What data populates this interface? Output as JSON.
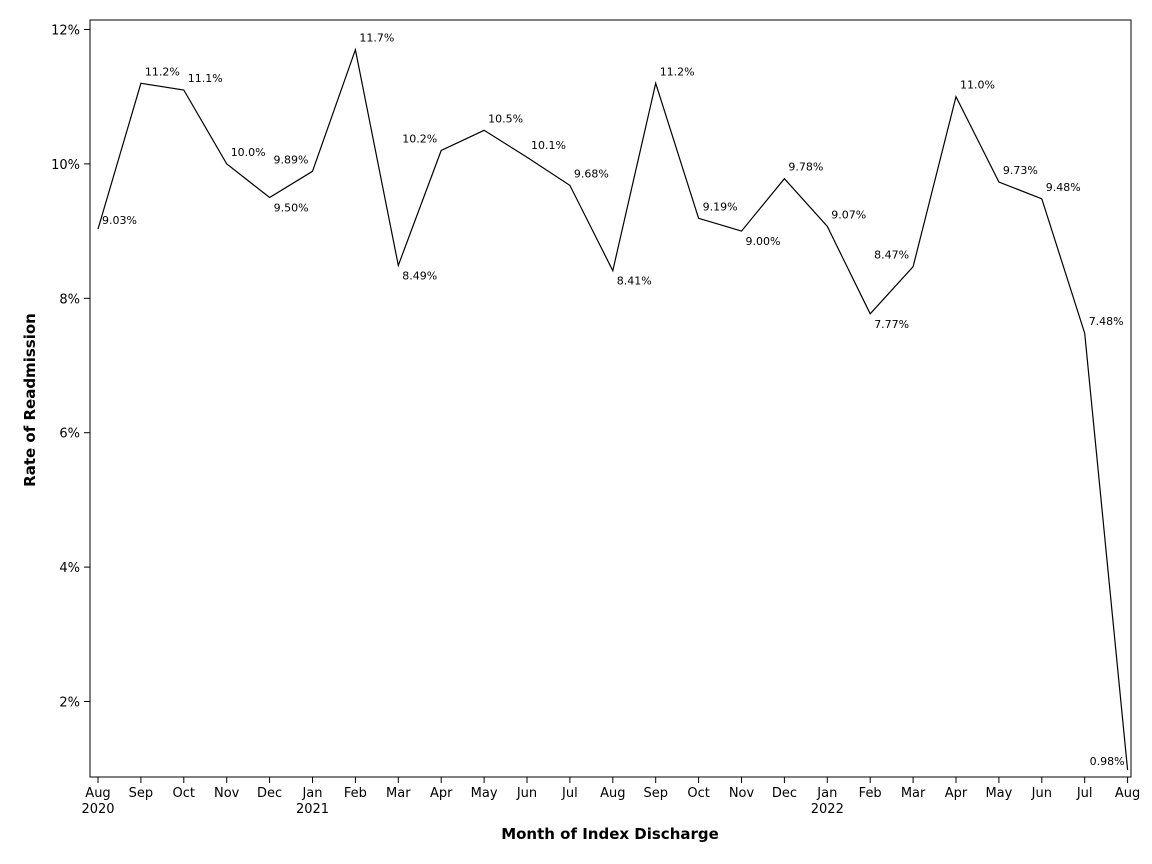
{
  "chart_data": {
    "type": "line",
    "title": "",
    "xlabel": "Month of Index Discharge",
    "ylabel": "Rate of Readmission",
    "ylim": [
      0.85,
      12.1
    ],
    "yticks": [
      2,
      4,
      6,
      8,
      10,
      12
    ],
    "ytick_labels": [
      "2%",
      "4%",
      "6%",
      "8%",
      "10%",
      "12%"
    ],
    "grid": false,
    "legend": "none",
    "line_color": "#000000",
    "categories": [
      {
        "month": "Aug",
        "year": "2020"
      },
      {
        "month": "Sep",
        "year": ""
      },
      {
        "month": "Oct",
        "year": ""
      },
      {
        "month": "Nov",
        "year": ""
      },
      {
        "month": "Dec",
        "year": ""
      },
      {
        "month": "Jan",
        "year": "2021"
      },
      {
        "month": "Feb",
        "year": ""
      },
      {
        "month": "Mar",
        "year": ""
      },
      {
        "month": "Apr",
        "year": ""
      },
      {
        "month": "May",
        "year": ""
      },
      {
        "month": "Jun",
        "year": ""
      },
      {
        "month": "Jul",
        "year": ""
      },
      {
        "month": "Aug",
        "year": ""
      },
      {
        "month": "Sep",
        "year": ""
      },
      {
        "month": "Oct",
        "year": ""
      },
      {
        "month": "Nov",
        "year": ""
      },
      {
        "month": "Dec",
        "year": ""
      },
      {
        "month": "Jan",
        "year": "2022"
      },
      {
        "month": "Feb",
        "year": ""
      },
      {
        "month": "Mar",
        "year": ""
      },
      {
        "month": "Apr",
        "year": ""
      },
      {
        "month": "May",
        "year": ""
      },
      {
        "month": "Jun",
        "year": ""
      },
      {
        "month": "Jul",
        "year": ""
      },
      {
        "month": "Aug",
        "year": ""
      }
    ],
    "series": [
      {
        "name": "Rate of Readmission",
        "values": [
          9.03,
          11.2,
          11.1,
          10.0,
          9.5,
          9.89,
          11.7,
          8.49,
          10.2,
          10.5,
          10.1,
          9.68,
          8.41,
          11.2,
          9.19,
          9.0,
          9.78,
          9.07,
          7.77,
          8.47,
          11.0,
          9.73,
          9.48,
          7.48,
          0.98
        ],
        "labels": [
          "9.03%",
          "11.2%",
          "11.1%",
          "10.0%",
          "9.50%",
          "9.89%",
          "11.7%",
          "8.49%",
          "10.2%",
          "10.5%",
          "10.1%",
          "9.68%",
          "8.41%",
          "11.2%",
          "9.19%",
          "9.00%",
          "9.78%",
          "9.07%",
          "7.77%",
          "8.47%",
          "11.0%",
          "9.73%",
          "9.48%",
          "7.48%",
          "0.98%"
        ]
      }
    ]
  }
}
